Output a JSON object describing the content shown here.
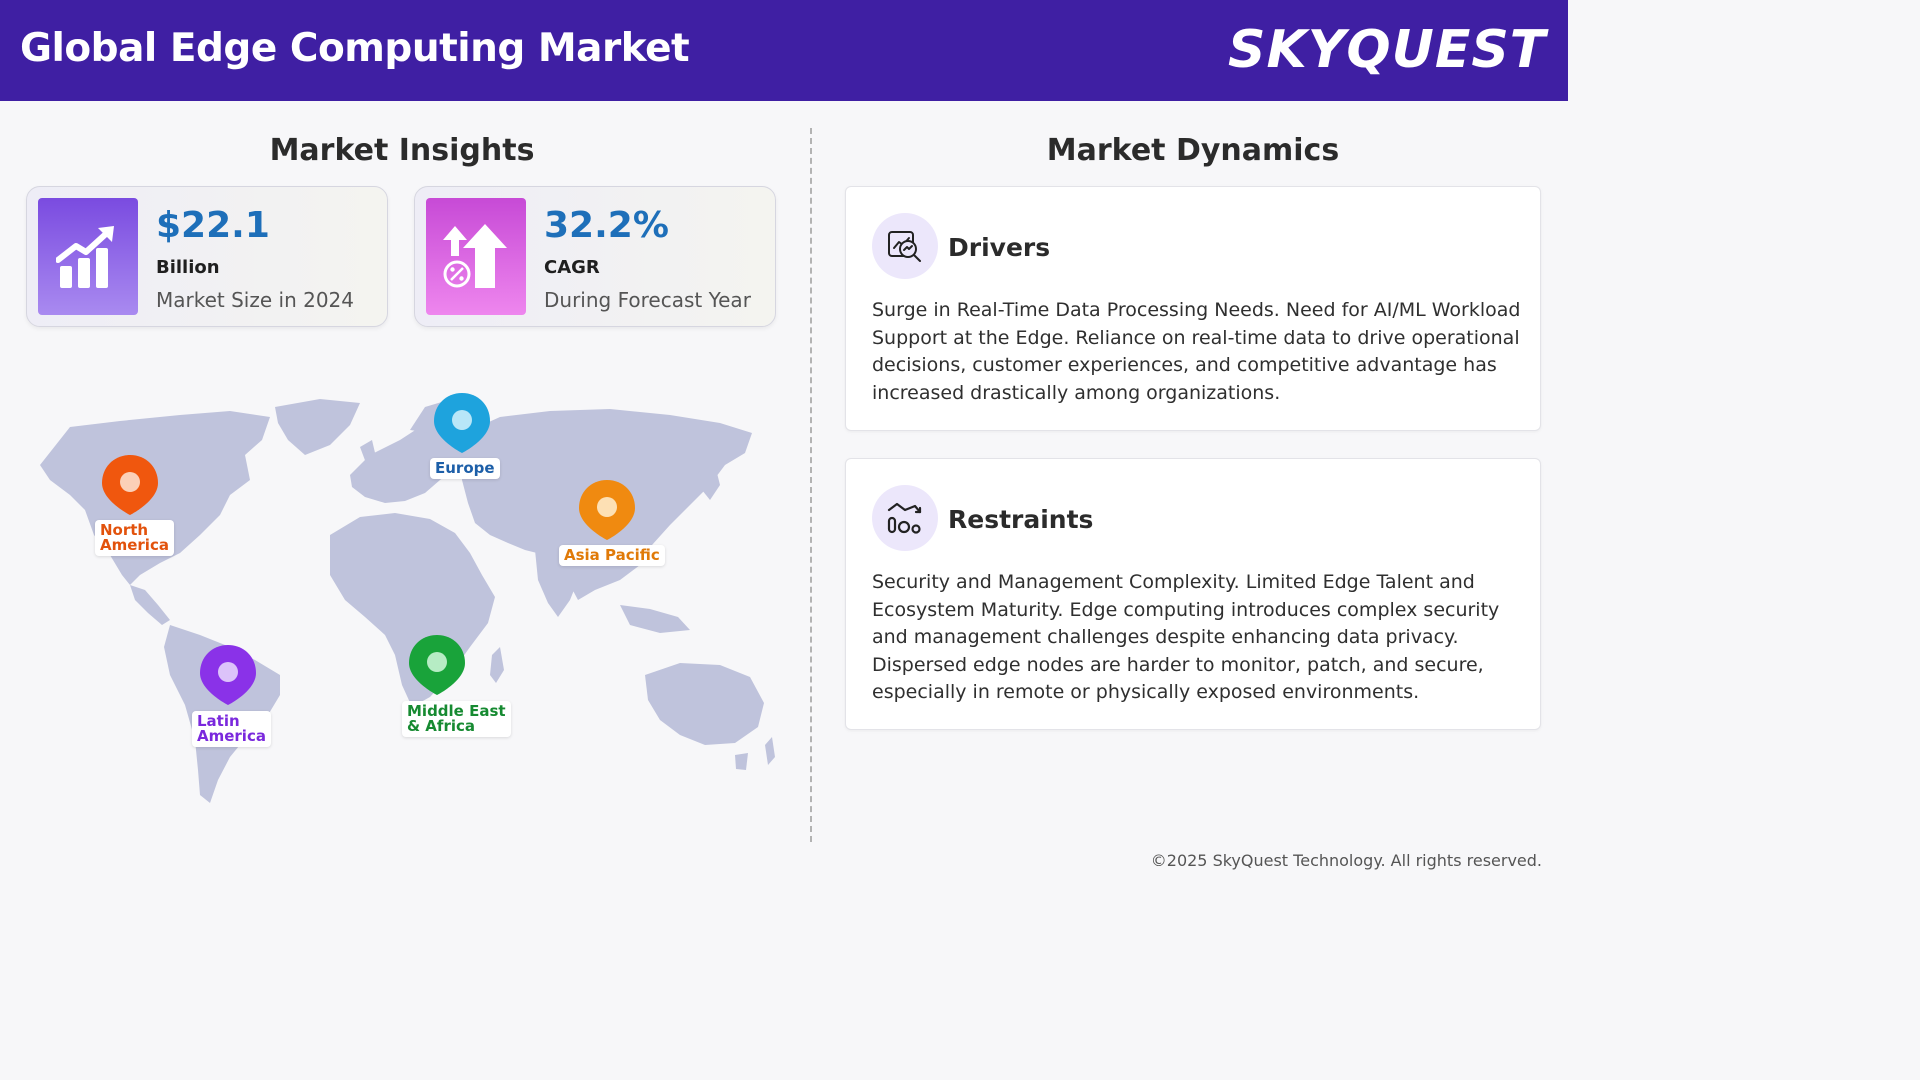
{
  "header": {
    "title": "Global Edge Computing Market",
    "logo_text": "SKYQUEST",
    "background": "#3f1fa3"
  },
  "insights": {
    "title": "Market Insights",
    "kpis": [
      {
        "icon": "bar-growth-icon",
        "value": "$22.1",
        "unit": "Billion",
        "description": "Market Size in 2024"
      },
      {
        "icon": "percent-arrow-up-icon",
        "value": "32.2%",
        "unit": "CAGR",
        "description": "During Forecast Year"
      }
    ]
  },
  "map": {
    "regions": [
      {
        "label_line1": "North",
        "label_line2": "America",
        "color": "#f0570e"
      },
      {
        "label_line1": "Europe",
        "label_line2": "",
        "color": "#1ea3dd"
      },
      {
        "label_line1": "Asia Pacific",
        "label_line2": "",
        "color": "#f08a10"
      },
      {
        "label_line1": "Latin",
        "label_line2": "America",
        "color": "#8a32e8"
      },
      {
        "label_line1": "Middle East",
        "label_line2": "& Africa",
        "color": "#19a33a"
      }
    ]
  },
  "dynamics": {
    "title": "Market Dynamics",
    "drivers": {
      "icon": "analytics-magnifier-icon",
      "heading": "Drivers",
      "text": "Surge in Real-Time Data Processing Needs. Need for AI/ML Workload Support at the Edge. Reliance on real-time data to drive operational decisions, customer experiences, and competitive advantage has increased drastically among organizations."
    },
    "restraints": {
      "icon": "declining-chart-icon",
      "heading": "Restraints",
      "text": "Security and Management Complexity. Limited Edge Talent and Ecosystem Maturity. Edge computing introduces complex security and management challenges despite enhancing data privacy. Dispersed edge nodes are harder to monitor, patch, and secure, especially in remote or physically exposed environments."
    }
  },
  "footer": {
    "copyright": "©2025 SkyQuest Technology. All rights reserved."
  }
}
